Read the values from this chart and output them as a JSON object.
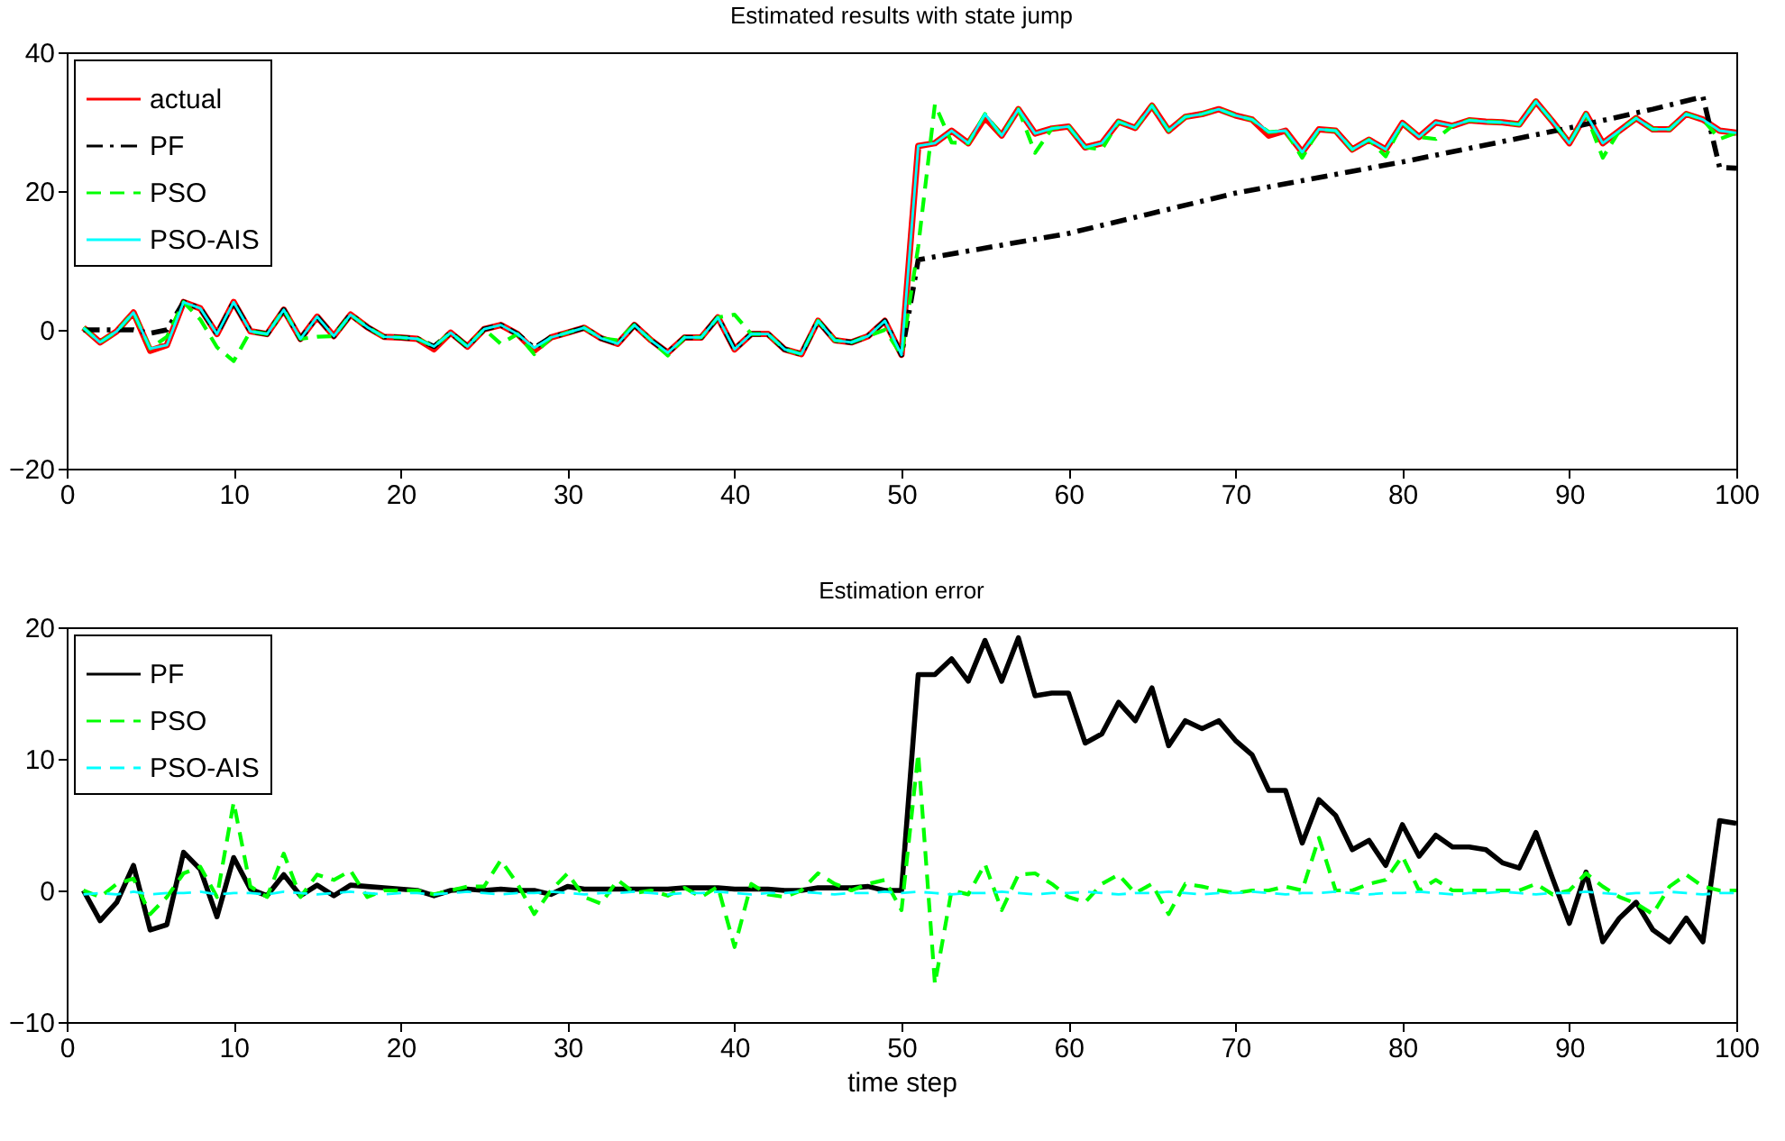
{
  "chart_data": [
    {
      "type": "line",
      "title": "Estimated results with state jump",
      "x": [
        1,
        2,
        3,
        4,
        5,
        6,
        7,
        8,
        9,
        10,
        11,
        12,
        13,
        14,
        15,
        16,
        17,
        18,
        19,
        20,
        21,
        22,
        23,
        24,
        25,
        26,
        27,
        28,
        29,
        30,
        31,
        32,
        33,
        34,
        35,
        36,
        37,
        38,
        39,
        40,
        41,
        42,
        43,
        44,
        45,
        46,
        47,
        48,
        49,
        50,
        51,
        52,
        53,
        54,
        55,
        56,
        57,
        58,
        59,
        60,
        61,
        62,
        63,
        64,
        65,
        66,
        67,
        68,
        69,
        70,
        71,
        72,
        73,
        74,
        75,
        76,
        77,
        78,
        79,
        80,
        81,
        82,
        83,
        84,
        85,
        86,
        87,
        88,
        89,
        90,
        91,
        92,
        93,
        94,
        95,
        96,
        97,
        98,
        99,
        100
      ],
      "xlim": [
        0,
        100
      ],
      "xticks": [
        0,
        10,
        20,
        30,
        40,
        50,
        60,
        70,
        80,
        90,
        100
      ],
      "ylim": [
        -20,
        40
      ],
      "yticks": [
        -20,
        0,
        20,
        40
      ],
      "legend": "top left",
      "series": [
        {
          "name": "actual",
          "color": "#ff0000",
          "line_style": "solid",
          "values": [
            0.3,
            -1.8,
            -0.2,
            2.5,
            -3.0,
            -2.2,
            4.0,
            3.1,
            -0.6,
            4.0,
            -0.2,
            -0.6,
            2.9,
            -1.3,
            1.9,
            -0.9,
            2.2,
            0.4,
            -1.0,
            -1.1,
            -1.3,
            -2.8,
            -0.4,
            -2.4,
            0.1,
            0.7,
            -0.6,
            -3.0,
            -1.1,
            -0.4,
            0.3,
            -1.2,
            -2.0,
            0.7,
            -1.5,
            -3.3,
            -1.1,
            -1.1,
            1.8,
            -2.8,
            -0.6,
            -0.6,
            -2.8,
            -3.5,
            1.3,
            -1.5,
            -1.8,
            -0.9,
            1.3,
            -3.6,
            26.5,
            26.9,
            28.7,
            26.9,
            30.6,
            28.0,
            31.8,
            28.3,
            29.0,
            29.3,
            26.3,
            26.9,
            30.0,
            29.1,
            32.3,
            28.7,
            30.7,
            31.1,
            31.8,
            30.9,
            30.3,
            28.0,
            28.7,
            25.6,
            28.9,
            28.7,
            26.0,
            27.4,
            26.0,
            29.8,
            27.8,
            29.9,
            29.4,
            30.2,
            30.0,
            29.9,
            29.6,
            32.9,
            30.0,
            26.9,
            31.1,
            26.9,
            28.7,
            30.5,
            28.9,
            28.9,
            31.1,
            30.3,
            28.7,
            28.4
          ]
        },
        {
          "name": "PF",
          "color": "#000000",
          "line_style": "dashdot",
          "x": [
            1,
            2,
            3,
            4,
            5,
            6,
            7,
            8,
            9,
            10,
            11,
            12,
            13,
            14,
            15,
            16,
            17,
            18,
            19,
            20,
            21,
            22,
            23,
            24,
            25,
            26,
            27,
            28,
            29,
            30,
            31,
            32,
            33,
            34,
            35,
            36,
            37,
            38,
            39,
            40,
            41,
            42,
            43,
            44,
            45,
            46,
            47,
            48,
            49,
            50,
            51,
            60,
            70,
            80,
            90,
            95,
            98,
            99,
            100
          ],
          "values": [
            0,
            0,
            0,
            0,
            -0.5,
            0,
            4.0,
            3.1,
            -0.6,
            4.0,
            -0.2,
            -0.6,
            2.9,
            -1.3,
            1.9,
            -0.9,
            2.2,
            0.4,
            -1.0,
            -1.1,
            -1.3,
            -2.4,
            -0.4,
            -2.4,
            0.1,
            0.7,
            -0.6,
            -2.6,
            -1.1,
            -0.4,
            0.3,
            -1.2,
            -2.0,
            0.7,
            -1.5,
            -3.3,
            -1.1,
            -1.1,
            1.8,
            -2.8,
            -0.6,
            -0.6,
            -2.8,
            -3.5,
            1.3,
            -1.5,
            -1.8,
            -0.9,
            1.3,
            -3.6,
            10.1,
            13.9,
            19.7,
            24.2,
            29.1,
            31.8,
            33.6,
            23.4,
            23.3
          ]
        },
        {
          "name": "PSO",
          "color": "#00ff00",
          "line_style": "dashed",
          "values": [
            0.3,
            -1.8,
            -0.2,
            2.5,
            -2.7,
            -1.0,
            4.0,
            1.5,
            -2.5,
            -4.5,
            -0.2,
            -0.6,
            2.9,
            -1.3,
            -1.0,
            -0.9,
            2.2,
            0.4,
            -1.0,
            -1.1,
            -1.3,
            -2.4,
            -0.4,
            -2.4,
            0.1,
            -2.0,
            -0.6,
            -3.5,
            -1.1,
            -0.4,
            0.3,
            -1.2,
            -1.5,
            0.7,
            -1.5,
            -3.7,
            -1.1,
            -1.1,
            1.8,
            2.2,
            -0.6,
            -0.6,
            -2.8,
            -3.5,
            1.3,
            -1.5,
            -1.8,
            -0.9,
            0,
            -3.6,
            12,
            32.5,
            27,
            26.9,
            31.1,
            28.0,
            31.8,
            25.5,
            29.0,
            29.3,
            26.3,
            26.0,
            30.0,
            29.1,
            32.3,
            28.7,
            30.7,
            31.1,
            31.8,
            30.9,
            30.3,
            28.5,
            28.7,
            24.8,
            28.9,
            28.7,
            26.0,
            27.4,
            25.0,
            29.8,
            27.8,
            27.5,
            29.4,
            30.2,
            30.0,
            29.9,
            29.6,
            32.9,
            30.0,
            26.9,
            31.1,
            24.8,
            28.7,
            30.5,
            28.9,
            28.9,
            31.1,
            30.3,
            27.5,
            28.4
          ]
        },
        {
          "name": "PSO-AIS",
          "color": "#00ffff",
          "line_style": "solid",
          "values": [
            0.3,
            -1.8,
            -0.2,
            2.5,
            -2.7,
            -2.2,
            4.0,
            3.1,
            -0.6,
            4.0,
            -0.2,
            -0.6,
            2.9,
            -1.3,
            1.9,
            -0.9,
            2.2,
            0.4,
            -1.0,
            -1.1,
            -1.3,
            -2.4,
            -0.4,
            -2.4,
            0.1,
            0.7,
            -0.6,
            -2.6,
            -1.1,
            -0.4,
            0.3,
            -1.2,
            -2.0,
            0.7,
            -1.5,
            -3.3,
            -1.1,
            -1.1,
            1.8,
            -2.8,
            -0.6,
            -0.6,
            -2.8,
            -3.5,
            1.3,
            -1.5,
            -1.8,
            -0.9,
            1.3,
            -3.6,
            26.5,
            26.9,
            28.7,
            26.9,
            31.1,
            28.0,
            31.8,
            28.3,
            29.0,
            29.3,
            26.3,
            26.9,
            30.0,
            29.1,
            32.3,
            28.7,
            30.7,
            31.1,
            31.8,
            30.9,
            30.3,
            28.5,
            28.7,
            25.6,
            28.9,
            28.7,
            26.0,
            27.4,
            26.0,
            29.8,
            27.8,
            29.9,
            29.4,
            30.2,
            30.0,
            29.9,
            29.6,
            32.9,
            30.0,
            26.9,
            31.1,
            26.9,
            28.7,
            30.5,
            28.9,
            28.9,
            31.1,
            30.3,
            28.7,
            28.4
          ]
        }
      ]
    },
    {
      "type": "line",
      "title": "Estimation error",
      "xlabel": "time step",
      "x": [
        1,
        2,
        3,
        4,
        5,
        6,
        7,
        8,
        9,
        10,
        11,
        12,
        13,
        14,
        15,
        16,
        17,
        18,
        19,
        20,
        21,
        22,
        23,
        24,
        25,
        26,
        27,
        28,
        29,
        30,
        31,
        32,
        33,
        34,
        35,
        36,
        37,
        38,
        39,
        40,
        41,
        42,
        43,
        44,
        45,
        46,
        47,
        48,
        49,
        50,
        51,
        52,
        53,
        54,
        55,
        56,
        57,
        58,
        59,
        60,
        61,
        62,
        63,
        64,
        65,
        66,
        67,
        68,
        69,
        70,
        71,
        72,
        73,
        74,
        75,
        76,
        77,
        78,
        79,
        80,
        81,
        82,
        83,
        84,
        85,
        86,
        87,
        88,
        89,
        90,
        91,
        92,
        93,
        94,
        95,
        96,
        97,
        98,
        99,
        100
      ],
      "xlim": [
        0,
        100
      ],
      "xticks": [
        0,
        10,
        20,
        30,
        40,
        50,
        60,
        70,
        80,
        90,
        100
      ],
      "ylim": [
        -10,
        20
      ],
      "yticks": [
        -10,
        0,
        10,
        20
      ],
      "legend": "top left",
      "series": [
        {
          "name": "PF",
          "color": "#000000",
          "line_style": "solid",
          "values": [
            0,
            -2.3,
            -0.9,
            1.9,
            -3.0,
            -2.6,
            2.9,
            1.6,
            -2.0,
            2.5,
            0.1,
            -0.4,
            1.2,
            -0.4,
            0.4,
            -0.4,
            0.4,
            0.3,
            0.2,
            0.1,
            0,
            -0.4,
            0,
            0.1,
            0,
            0.1,
            0,
            0,
            -0.3,
            0.3,
            0.1,
            0.1,
            0.1,
            0.1,
            0.1,
            0.1,
            0.2,
            0.2,
            0.2,
            0.1,
            0.1,
            0.1,
            0,
            0,
            0.2,
            0.2,
            0.2,
            0.3,
            0,
            0,
            16.4,
            16.4,
            17.6,
            15.9,
            19.0,
            15.9,
            19.2,
            14.8,
            15.0,
            15.0,
            11.2,
            11.9,
            14.3,
            12.9,
            15.4,
            11.0,
            12.9,
            12.3,
            12.9,
            11.4,
            10.3,
            7.6,
            7.6,
            3.6,
            6.9,
            5.7,
            3.1,
            3.8,
            1.9,
            5.0,
            2.6,
            4.2,
            3.3,
            3.3,
            3.1,
            2.1,
            1.7,
            4.4,
            0.9,
            -2.5,
            1.4,
            -3.9,
            -2.1,
            -0.9,
            -3.0,
            -3.9,
            -2.1,
            -3.9,
            5.3,
            5.1
          ]
        },
        {
          "name": "PSO",
          "color": "#00ff00",
          "line_style": "dashed",
          "values": [
            0,
            -0.5,
            0.5,
            0.9,
            -1.8,
            -0.5,
            1.3,
            1.8,
            -0.5,
            6.7,
            0.3,
            -0.5,
            2.8,
            -0.5,
            1.2,
            0.8,
            1.5,
            -0.5,
            0,
            0,
            0,
            -0.3,
            0,
            0.3,
            0.3,
            2.3,
            0.5,
            -1.8,
            0,
            1.3,
            -0.5,
            -1.0,
            0.8,
            -0.2,
            0,
            -0.4,
            0.2,
            -0.5,
            0.3,
            -4.3,
            0.5,
            -0.3,
            -0.5,
            0,
            1.3,
            0.5,
            0,
            0.5,
            0.8,
            -1.5,
            10.4,
            -7.1,
            0,
            -0.3,
            2.0,
            -1.5,
            1.2,
            1.3,
            0.5,
            -0.5,
            -0.9,
            0.5,
            1.2,
            -0.2,
            0.5,
            -1.8,
            0.5,
            0.3,
            0,
            -0.2,
            0,
            0,
            0.3,
            0,
            4.0,
            0,
            0,
            0.5,
            0.8,
            2.6,
            0,
            0.8,
            0,
            0,
            0,
            0,
            0,
            0.5,
            -0.3,
            0,
            1.3,
            0.3,
            -0.5,
            -1.0,
            -1.8,
            0.3,
            1.2,
            0.3,
            0,
            0
          ]
        },
        {
          "name": "PSO-AIS",
          "color": "#00ffff",
          "line_style": "dashed",
          "values": [
            -0.3,
            -0.2,
            -0.3,
            -0.1,
            -0.3,
            -0.2,
            -0.2,
            -0.1,
            -0.3,
            -0.2,
            -0.2,
            -0.3,
            -0.1,
            -0.2,
            -0.3,
            -0.2,
            -0.1,
            -0.2,
            -0.3,
            -0.2,
            -0.2,
            -0.3,
            -0.2,
            -0.1,
            -0.2,
            -0.3,
            -0.2,
            -0.2,
            -0.1,
            -0.2,
            -0.3,
            -0.2,
            -0.2,
            -0.1,
            -0.2,
            -0.3,
            -0.2,
            -0.2,
            -0.1,
            -0.2,
            -0.3,
            -0.2,
            -0.2,
            -0.1,
            -0.2,
            -0.3,
            -0.2,
            -0.2,
            -0.1,
            -0.2,
            -0.1,
            -0.2,
            -0.3,
            -0.2,
            -0.2,
            -0.1,
            -0.2,
            -0.3,
            -0.2,
            -0.2,
            -0.1,
            -0.2,
            -0.3,
            -0.2,
            -0.2,
            -0.1,
            -0.2,
            -0.3,
            -0.2,
            -0.2,
            -0.1,
            -0.2,
            -0.3,
            -0.2,
            -0.2,
            -0.1,
            -0.2,
            -0.3,
            -0.2,
            -0.2,
            -0.1,
            -0.2,
            -0.3,
            -0.2,
            -0.2,
            -0.1,
            -0.2,
            -0.3,
            -0.2,
            -0.2,
            -0.1,
            -0.2,
            -0.3,
            -0.2,
            -0.2,
            -0.1,
            -0.2,
            -0.3,
            -0.2,
            -0.2
          ]
        }
      ]
    }
  ]
}
